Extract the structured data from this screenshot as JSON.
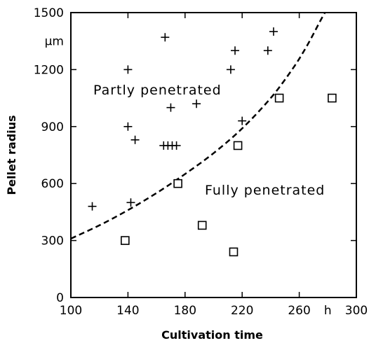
{
  "chart_data": {
    "type": "scatter",
    "title": "",
    "xlabel": "Cultivation time",
    "ylabel": "Pellet radius",
    "x_unit": "h",
    "y_unit": "µm",
    "xlim": [
      100,
      300
    ],
    "ylim": [
      0,
      1500
    ],
    "x_ticks": [
      100,
      140,
      180,
      220,
      260,
      300
    ],
    "y_ticks": [
      0,
      300,
      600,
      900,
      1200,
      1500
    ],
    "grid": false,
    "annotations": [
      "Partly penetrated",
      "Fully penetrated"
    ],
    "series": [
      {
        "marker": "plus",
        "points": [
          {
            "x": 115,
            "y": 480
          },
          {
            "x": 140,
            "y": 1200
          },
          {
            "x": 140,
            "y": 900
          },
          {
            "x": 142,
            "y": 500
          },
          {
            "x": 145,
            "y": 830
          },
          {
            "x": 165,
            "y": 800
          },
          {
            "x": 166,
            "y": 1370
          },
          {
            "x": 168,
            "y": 800
          },
          {
            "x": 170,
            "y": 1000
          },
          {
            "x": 171,
            "y": 800
          },
          {
            "x": 174,
            "y": 800
          },
          {
            "x": 188,
            "y": 1020
          },
          {
            "x": 212,
            "y": 1200
          },
          {
            "x": 215,
            "y": 1300
          },
          {
            "x": 220,
            "y": 930
          },
          {
            "x": 238,
            "y": 1300
          },
          {
            "x": 242,
            "y": 1400
          }
        ]
      },
      {
        "marker": "square",
        "points": [
          {
            "x": 138,
            "y": 300
          },
          {
            "x": 175,
            "y": 600
          },
          {
            "x": 192,
            "y": 380
          },
          {
            "x": 214,
            "y": 240
          },
          {
            "x": 217,
            "y": 800
          },
          {
            "x": 246,
            "y": 1050
          },
          {
            "x": 283,
            "y": 1050
          }
        ]
      }
    ],
    "boundary_curve": {
      "style": "dashed",
      "points": [
        {
          "x": 100,
          "y": 310
        },
        {
          "x": 120,
          "y": 380
        },
        {
          "x": 140,
          "y": 460
        },
        {
          "x": 160,
          "y": 550
        },
        {
          "x": 180,
          "y": 650
        },
        {
          "x": 200,
          "y": 760
        },
        {
          "x": 220,
          "y": 890
        },
        {
          "x": 240,
          "y": 1050
        },
        {
          "x": 255,
          "y": 1200
        },
        {
          "x": 265,
          "y": 1320
        },
        {
          "x": 275,
          "y": 1460
        },
        {
          "x": 278,
          "y": 1500
        }
      ]
    }
  }
}
